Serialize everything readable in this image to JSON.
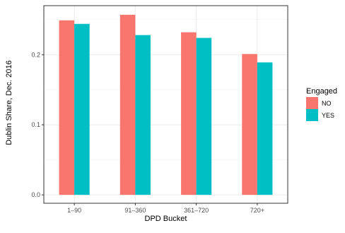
{
  "chart_data": {
    "type": "bar",
    "categories": [
      "1–90",
      "91–360",
      "361–720",
      "720+"
    ],
    "series": [
      {
        "name": "NO",
        "color": "#F8766D",
        "values": [
          0.249,
          0.257,
          0.232,
          0.201
        ]
      },
      {
        "name": "YES",
        "color": "#00BFC4",
        "values": [
          0.244,
          0.228,
          0.224,
          0.189
        ]
      }
    ],
    "xlabel": "DPD Bucket",
    "ylabel": "Dublin Share, Dec. 2016",
    "ylim": [
      -0.012,
      0.27
    ],
    "yticks": [
      "0.0",
      "0.1",
      "0.2"
    ],
    "ytick_values": [
      0.0,
      0.1,
      0.2
    ],
    "legend": {
      "title": "Engaged",
      "placement": "right"
    },
    "grid": true,
    "panel_border": true
  }
}
